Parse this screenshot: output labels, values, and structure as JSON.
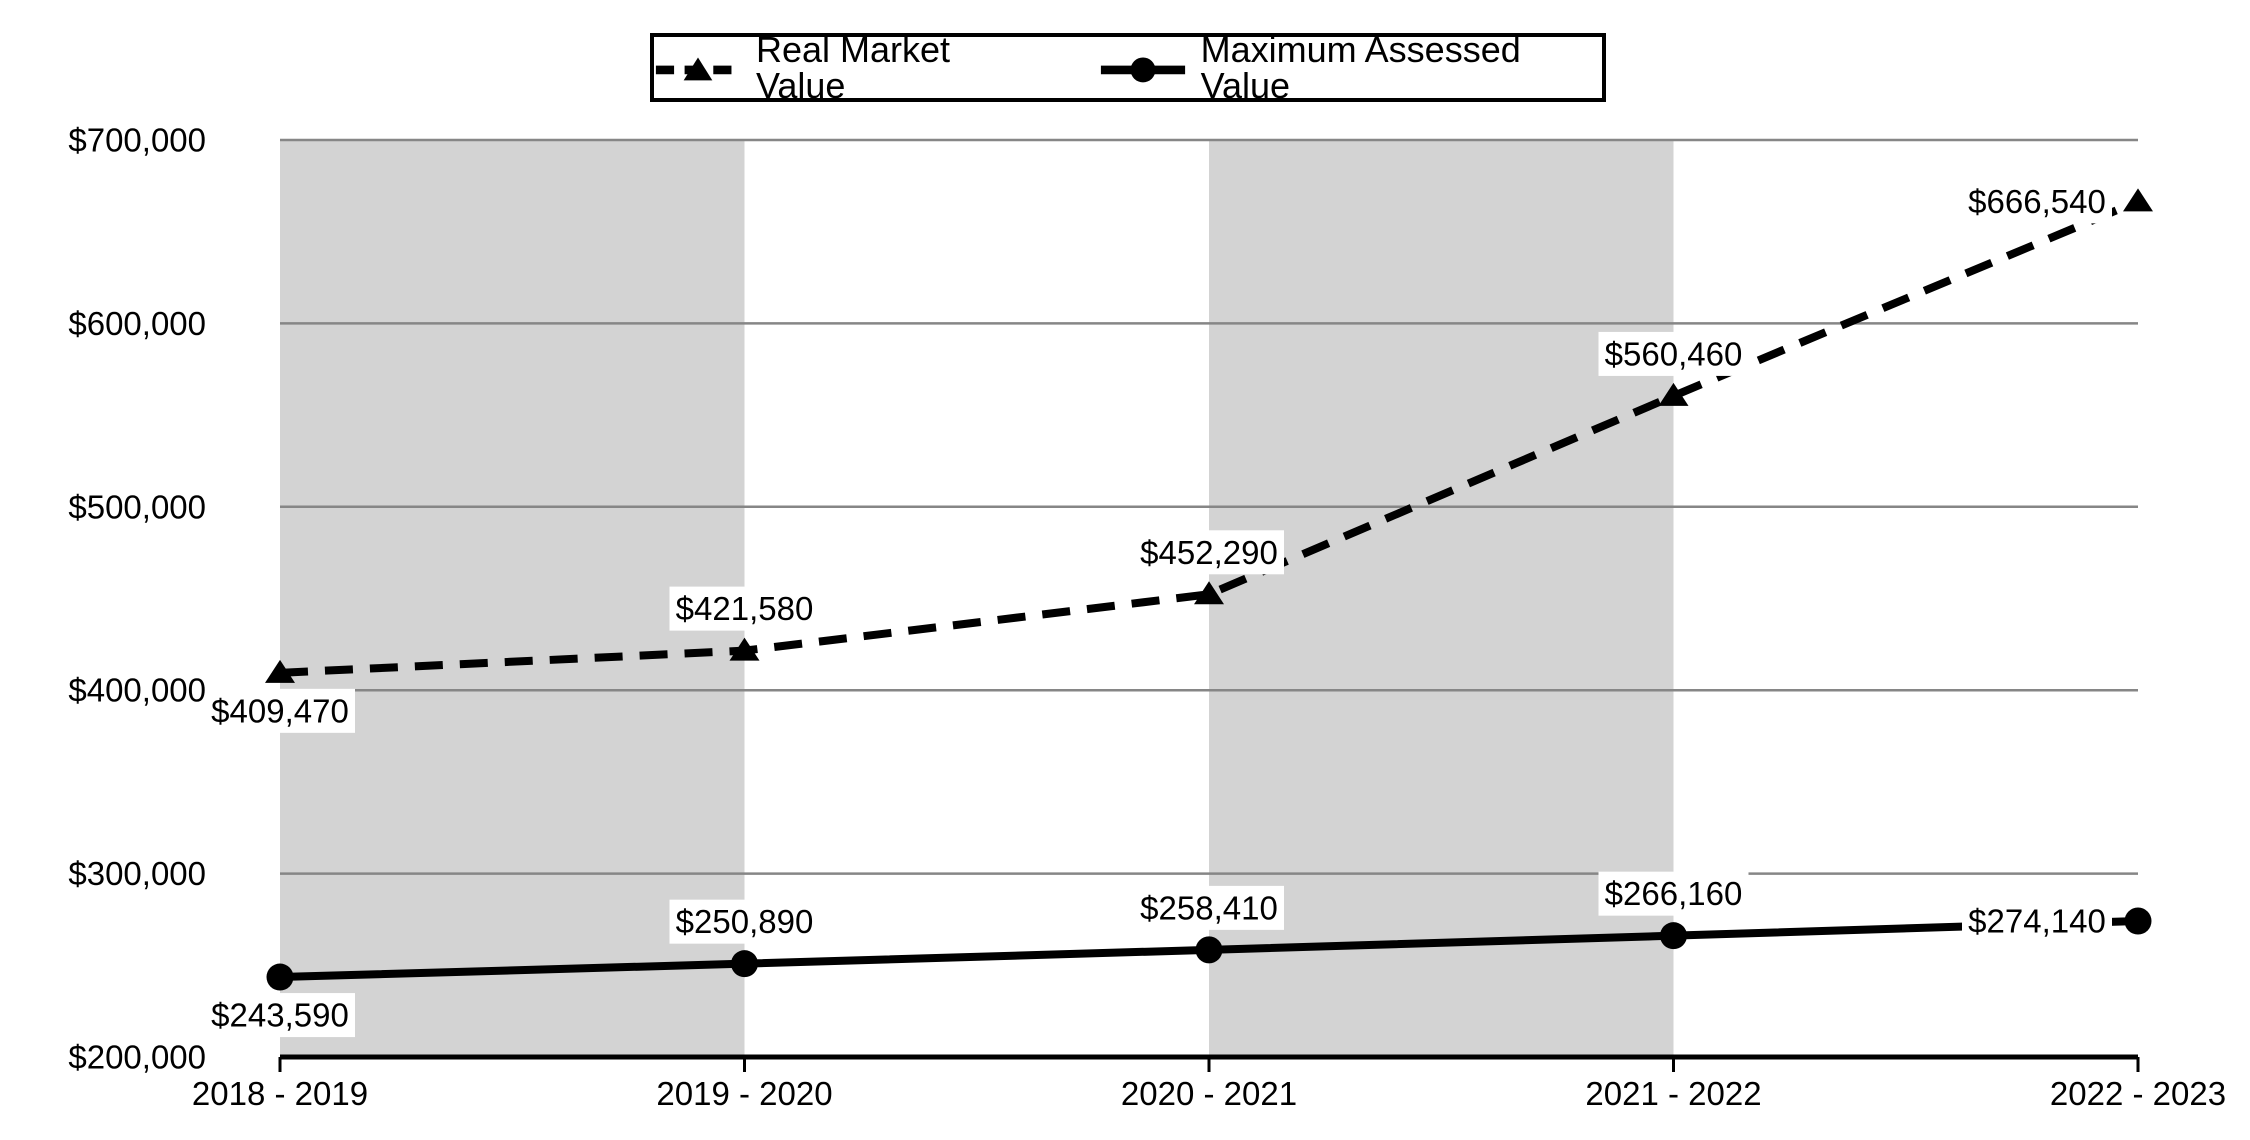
{
  "chart_data": {
    "type": "line",
    "title": "",
    "categories": [
      "2018 - 2019",
      "2019 - 2020",
      "2020 - 2021",
      "2021 - 2022",
      "2022 - 2023"
    ],
    "series": [
      {
        "name": "Real Market Value",
        "values": [
          409470,
          421580,
          452290,
          560460,
          666540
        ],
        "labels": [
          "$409,470",
          "$421,580",
          "$452,290",
          "$560,460",
          "$666,540"
        ],
        "label_placements": [
          "below",
          "above",
          "above",
          "above",
          "left"
        ],
        "line_style": "dashed",
        "marker": "triangle",
        "color": "#000000"
      },
      {
        "name": "Maximum Assessed Value",
        "values": [
          243590,
          250890,
          258410,
          266160,
          274140
        ],
        "labels": [
          "$243,590",
          "$250,890",
          "$258,410",
          "$266,160",
          "$274,140"
        ],
        "label_placements": [
          "below",
          "above",
          "above",
          "above",
          "left"
        ],
        "line_style": "solid",
        "marker": "circle",
        "color": "#000000"
      }
    ],
    "y_axis": {
      "min": 200000,
      "max": 700000,
      "step": 100000,
      "tick_labels": [
        "$200,000",
        "$300,000",
        "$400,000",
        "$500,000",
        "$600,000",
        "$700,000"
      ]
    },
    "x_axis": {
      "tick_labels": [
        "2018 - 2019",
        "2019 - 2020",
        "2020 - 2021",
        "2021 - 2022",
        "2022 - 2023"
      ]
    },
    "ylim": [
      200000,
      700000
    ],
    "grid": {
      "show": true,
      "color": "#868686"
    },
    "plot_bands": {
      "color": "#d3d3d3",
      "category_spans": [
        [
          0,
          1
        ],
        [
          2,
          3
        ]
      ]
    },
    "axis_color": "#000000",
    "label_background": "#ffffff",
    "legend_position": "top"
  }
}
